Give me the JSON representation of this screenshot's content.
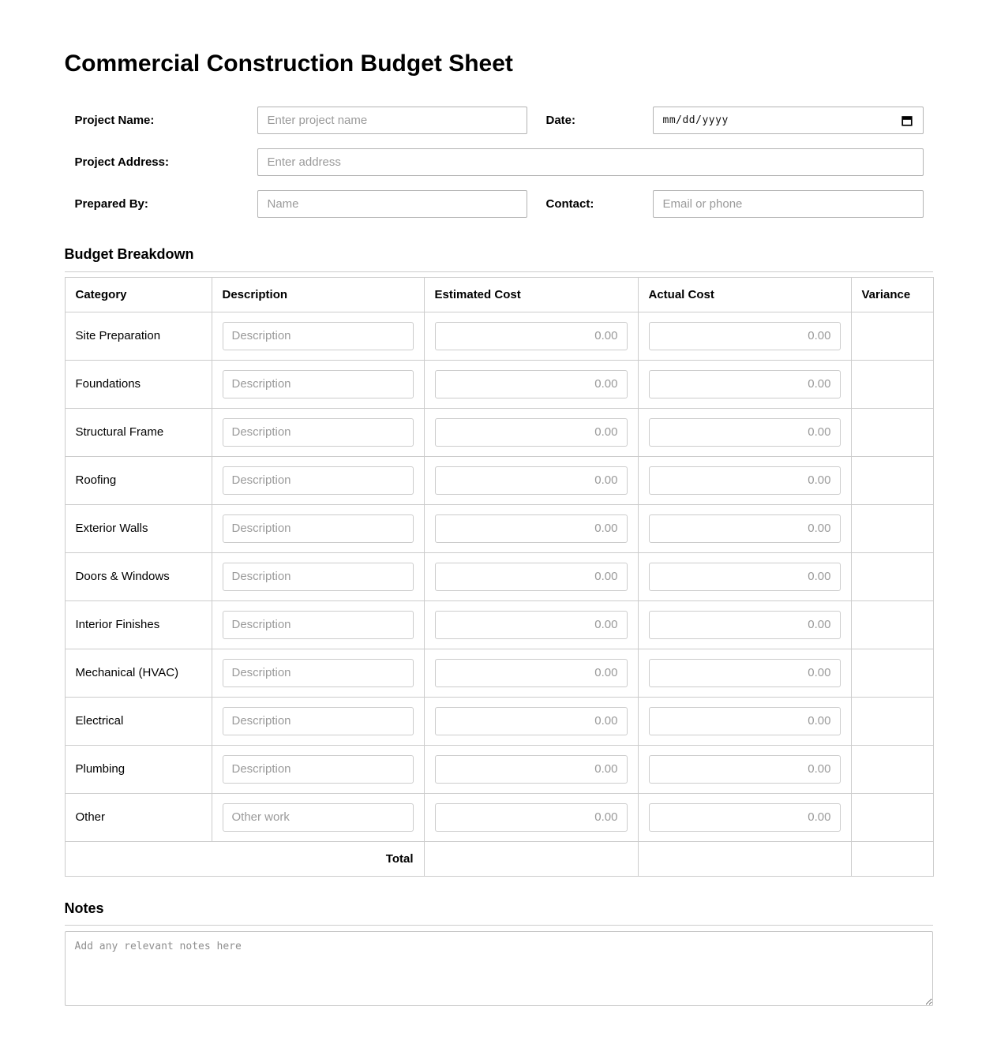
{
  "header": {
    "title": "Commercial Construction Budget Sheet"
  },
  "form": {
    "project_name": {
      "label": "Project Name:",
      "placeholder": "Enter project name"
    },
    "date": {
      "label": "Date:",
      "value": "mm/dd/yyyy",
      "icon": "calendar-icon"
    },
    "project_address": {
      "label": "Project Address:",
      "placeholder": "Enter address"
    },
    "prepared_by": {
      "label": "Prepared By:",
      "placeholder": "Name"
    },
    "contact": {
      "label": "Contact:",
      "placeholder": "Email or phone"
    }
  },
  "budget": {
    "heading": "Budget Breakdown",
    "columns": [
      "Category",
      "Description",
      "Estimated Cost",
      "Actual Cost",
      "Variance"
    ],
    "rows": [
      {
        "category": "Site Preparation",
        "description_placeholder": "Description",
        "estimated": "0.00",
        "actual": "0.00",
        "variance": ""
      },
      {
        "category": "Foundations",
        "description_placeholder": "Description",
        "estimated": "0.00",
        "actual": "0.00",
        "variance": ""
      },
      {
        "category": "Structural Frame",
        "description_placeholder": "Description",
        "estimated": "0.00",
        "actual": "0.00",
        "variance": ""
      },
      {
        "category": "Roofing",
        "description_placeholder": "Description",
        "estimated": "0.00",
        "actual": "0.00",
        "variance": ""
      },
      {
        "category": "Exterior Walls",
        "description_placeholder": "Description",
        "estimated": "0.00",
        "actual": "0.00",
        "variance": ""
      },
      {
        "category": "Doors & Windows",
        "description_placeholder": "Description",
        "estimated": "0.00",
        "actual": "0.00",
        "variance": ""
      },
      {
        "category": "Interior Finishes",
        "description_placeholder": "Description",
        "estimated": "0.00",
        "actual": "0.00",
        "variance": ""
      },
      {
        "category": "Mechanical (HVAC)",
        "description_placeholder": "Description",
        "estimated": "0.00",
        "actual": "0.00",
        "variance": ""
      },
      {
        "category": "Electrical",
        "description_placeholder": "Description",
        "estimated": "0.00",
        "actual": "0.00",
        "variance": ""
      },
      {
        "category": "Plumbing",
        "description_placeholder": "Description",
        "estimated": "0.00",
        "actual": "0.00",
        "variance": ""
      },
      {
        "category": "Other",
        "description_placeholder": "Other work",
        "estimated": "0.00",
        "actual": "0.00",
        "variance": ""
      }
    ],
    "total_label": "Total"
  },
  "notes": {
    "heading": "Notes",
    "placeholder": "Add any relevant notes here"
  },
  "colors": {
    "table_border": "#cccccc",
    "input_border": "#b3b3b3",
    "placeholder_text": "#9a9a9a",
    "text": "#000000",
    "background": "#ffffff"
  }
}
